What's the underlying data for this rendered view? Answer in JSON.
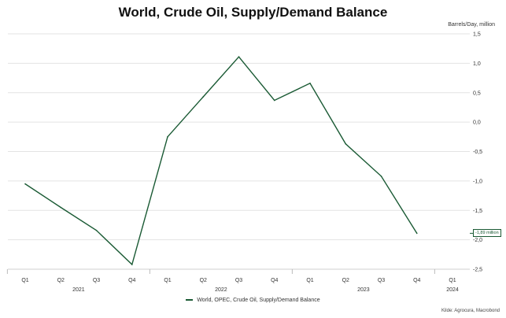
{
  "chart_data": {
    "type": "line",
    "title": "World, Crude Oil, Supply/Demand Balance",
    "unit_label": "Barrels/Day, million",
    "quarters": [
      "Q1",
      "Q2",
      "Q3",
      "Q4",
      "Q1",
      "Q2",
      "Q3",
      "Q4",
      "Q1",
      "Q2",
      "Q3",
      "Q4",
      "Q1"
    ],
    "years": [
      {
        "label": "2021",
        "start": 0,
        "end": 3
      },
      {
        "label": "2022",
        "start": 4,
        "end": 7
      },
      {
        "label": "2023",
        "start": 8,
        "end": 11
      },
      {
        "label": "2024",
        "start": 12,
        "end": 12
      }
    ],
    "y_ticks": [
      "1,5",
      "1,0",
      "0,5",
      "0,0",
      "-0,5",
      "-1,0",
      "-1,5",
      "-2,0",
      "-2,5"
    ],
    "y_tick_values": [
      1.5,
      1.0,
      0.5,
      0.0,
      -0.5,
      -1.0,
      -1.5,
      -2.0,
      -2.5
    ],
    "ylim": [
      -2.5,
      1.5
    ],
    "grid": true,
    "series": [
      {
        "name": "World, OPEC, Crude Oil, Supply/Demand Balance",
        "color": "#1a5a34",
        "values": [
          -1.05,
          -1.45,
          -1.84,
          -2.42,
          -0.25,
          0.43,
          1.11,
          0.37,
          0.66,
          -0.37,
          -0.92,
          -1.89,
          null
        ]
      }
    ],
    "last_value_label": "-1,89 million",
    "source": "Kilde: Agrocura, Macrobond"
  }
}
